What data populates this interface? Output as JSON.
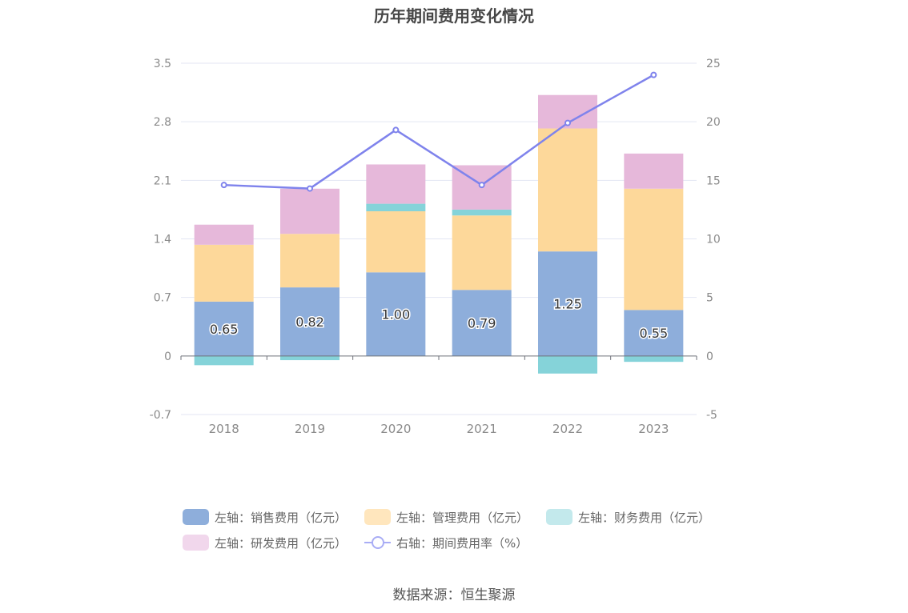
{
  "title": "历年期间费用变化情况",
  "source": "数据来源：恒生聚源",
  "chart_data": {
    "type": "bar",
    "stacked": true,
    "categories": [
      "2018",
      "2019",
      "2020",
      "2021",
      "2022",
      "2023"
    ],
    "series": [
      {
        "name": "左轴：销售费用（亿元）",
        "axis": "left",
        "color": "#8eaedb",
        "values": [
          0.65,
          0.82,
          1.0,
          0.79,
          1.25,
          0.55
        ]
      },
      {
        "name": "左轴：管理费用（亿元）",
        "axis": "left",
        "color": "#fdd89a",
        "values": [
          0.68,
          0.64,
          0.73,
          0.89,
          1.47,
          1.45
        ]
      },
      {
        "name": "左轴：财务费用（亿元）",
        "axis": "left",
        "color": "#85d3d9",
        "values": [
          -0.11,
          -0.05,
          0.09,
          0.07,
          -0.21,
          -0.07
        ]
      },
      {
        "name": "左轴：研发费用（亿元）",
        "axis": "left",
        "color": "#e6b8da",
        "values": [
          0.24,
          0.54,
          0.47,
          0.53,
          0.4,
          0.42
        ]
      },
      {
        "name": "右轴：期间费用率（%）",
        "axis": "right",
        "type": "line",
        "color": "#7f83ec",
        "values": [
          14.6,
          14.3,
          19.3,
          14.6,
          19.9,
          24.0
        ]
      }
    ],
    "y_left": {
      "min": -0.7,
      "max": 3.5,
      "ticks": [
        "3.5",
        "2.8",
        "2.1",
        "1.4",
        "0.7",
        "0",
        "-0.7"
      ]
    },
    "y_right": {
      "min": -5,
      "max": 25,
      "ticks": [
        "25",
        "20",
        "15",
        "10",
        "5",
        "0",
        "-5"
      ]
    },
    "data_labels": [
      "0.65",
      "0.82",
      "1.00",
      "0.79",
      "1.25",
      "0.55"
    ],
    "legend": [
      {
        "label": "左轴：销售费用（亿元）",
        "color": "#8eaedb",
        "kind": "bar"
      },
      {
        "label": "左轴：管理费用（亿元）",
        "color": "#ffe6bd",
        "kind": "bar"
      },
      {
        "label": "左轴：财务费用（亿元）",
        "color": "#c3e9ec",
        "kind": "bar"
      },
      {
        "label": "左轴：研发费用（亿元）",
        "color": "#f1d7ec",
        "kind": "bar"
      },
      {
        "label": "右轴：期间费用率（%）",
        "color": "#a9adf5",
        "kind": "line"
      }
    ],
    "grid": true,
    "legend_position": "bottom"
  }
}
